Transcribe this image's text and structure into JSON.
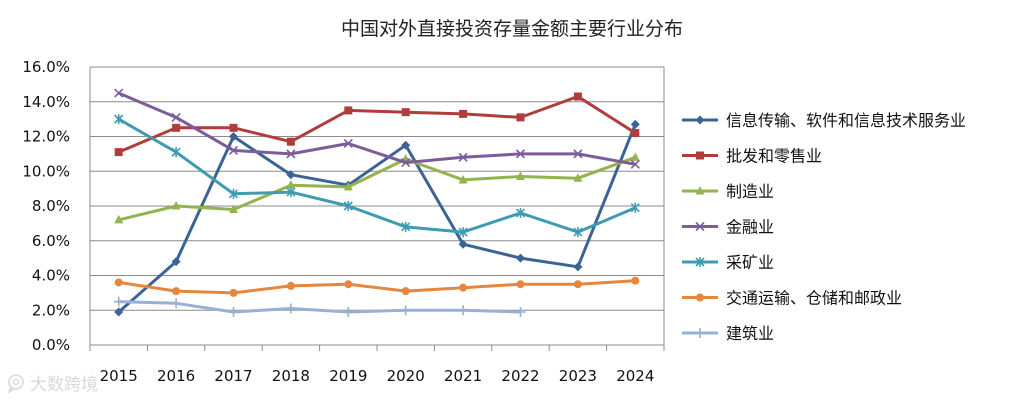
{
  "chart_data": {
    "type": "line",
    "title": "中国对外直接投资存量金额主要行业分布",
    "categories": [
      "2015",
      "2016",
      "2017",
      "2018",
      "2019",
      "2020",
      "2021",
      "2022",
      "2023",
      "2024"
    ],
    "y_ticks": [
      "0.0%",
      "2.0%",
      "4.0%",
      "6.0%",
      "8.0%",
      "10.0%",
      "12.0%",
      "14.0%",
      "16.0%"
    ],
    "ylim": [
      0,
      16
    ],
    "grid": true,
    "legend_position": "right",
    "series": [
      {
        "name": "信息传输、软件和信息技术服务业",
        "color": "#3b6496",
        "marker": "diamond",
        "values": [
          1.9,
          4.8,
          12.0,
          9.8,
          9.2,
          11.5,
          5.8,
          5.0,
          4.5,
          12.7
        ]
      },
      {
        "name": "批发和零售业",
        "color": "#b03c3c",
        "marker": "square",
        "values": [
          11.1,
          12.5,
          12.5,
          11.7,
          13.5,
          13.4,
          13.3,
          13.1,
          14.3,
          12.2
        ]
      },
      {
        "name": "制造业",
        "color": "#94b24e",
        "marker": "triangle",
        "values": [
          7.2,
          8.0,
          7.8,
          9.2,
          9.1,
          10.7,
          9.5,
          9.7,
          9.6,
          10.8
        ]
      },
      {
        "name": "金融业",
        "color": "#7d5c9b",
        "marker": "x",
        "values": [
          14.5,
          13.1,
          11.2,
          11.0,
          11.6,
          10.5,
          10.8,
          11.0,
          11.0,
          10.4
        ]
      },
      {
        "name": "采矿业",
        "color": "#3f9bb1",
        "marker": "star",
        "values": [
          13.0,
          11.1,
          8.7,
          8.8,
          8.0,
          6.8,
          6.5,
          7.6,
          6.5,
          7.9
        ]
      },
      {
        "name": "交通运输、仓储和邮政业",
        "color": "#e5873d",
        "marker": "circle",
        "values": [
          3.6,
          3.1,
          3.0,
          3.4,
          3.5,
          3.1,
          3.3,
          3.5,
          3.5,
          3.7
        ]
      },
      {
        "name": "建筑业",
        "color": "#97b0d5",
        "marker": "plus",
        "values": [
          2.5,
          2.4,
          1.9,
          2.1,
          1.9,
          2.0,
          2.0,
          1.9,
          null,
          null
        ]
      }
    ]
  },
  "watermark": {
    "text": "大数跨境",
    "icon": "chat-bubble-icon"
  }
}
